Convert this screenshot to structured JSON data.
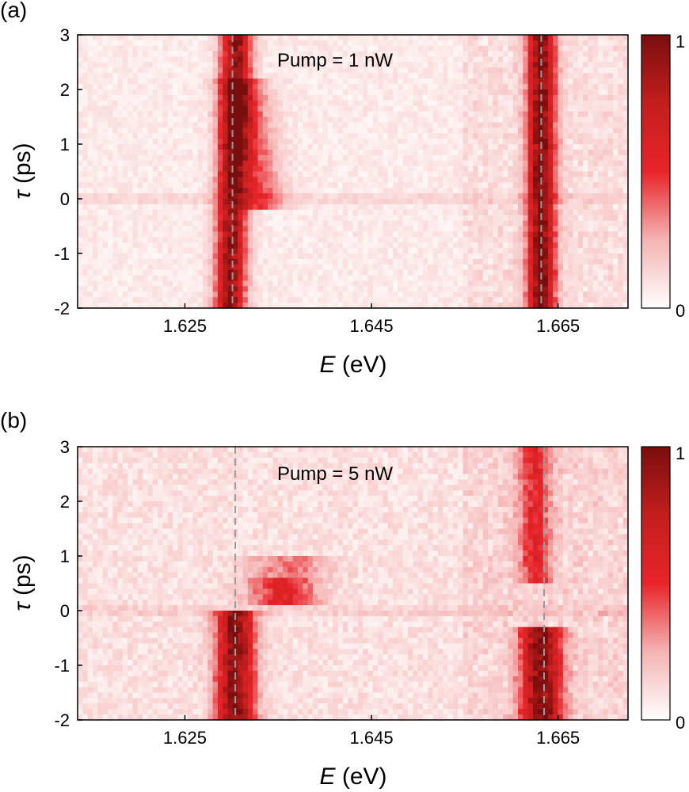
{
  "chart_data": [
    {
      "type": "heatmap",
      "panel_label": "(a)",
      "annotation": "Pump = 1 nW",
      "xlabel_italic": "E",
      "xlabel_unit": " (eV)",
      "ylabel_symbol": "τ",
      "ylabel_unit": " (ps)",
      "xlim": [
        1.6135,
        1.6725
      ],
      "ylim": [
        -2,
        3
      ],
      "xticks": [
        1.625,
        1.645,
        1.665
      ],
      "xtick_labels": [
        "1.625",
        "1.645",
        "1.665"
      ],
      "yticks": [
        -2,
        -1,
        0,
        1,
        2,
        3
      ],
      "ytick_labels": [
        "-2",
        "-1",
        "0",
        "1",
        "2",
        "3"
      ],
      "colorbar": {
        "min": 0,
        "max": 1,
        "min_label": "0",
        "max_label": "1",
        "colormap": [
          "#ffffff",
          "#f5b3b3",
          "#e8242a",
          "#c41e1e",
          "#7a0e0e"
        ]
      },
      "dashed_lines_x": [
        1.6301,
        1.6632
      ],
      "features": [
        {
          "center_e": 1.6301,
          "width_e": 0.0011,
          "amplitude": 0.85,
          "tau_from": -2,
          "tau_to": 3,
          "drift_e_per_ps": 0.00015
        },
        {
          "center_e": 1.6632,
          "width_e": 0.001,
          "amplitude": 0.9,
          "tau_from": -2,
          "tau_to": 3,
          "drift_e_per_ps": 0.0
        },
        {
          "center_e": 1.633,
          "width_e": 0.0018,
          "amplitude": 0.35,
          "tau_from": -0.2,
          "tau_to": 2.2,
          "drift_e_per_ps": -0.0008
        }
      ],
      "background_level": 0.07,
      "horizontal_band_tau": 0.0,
      "grid": false
    },
    {
      "type": "heatmap",
      "panel_label": "(b)",
      "annotation": "Pump = 5 nW",
      "xlabel_italic": "E",
      "xlabel_unit": " (eV)",
      "ylabel_symbol": "τ",
      "ylabel_unit": " (ps)",
      "xlim": [
        1.6135,
        1.6725
      ],
      "ylim": [
        -2,
        3
      ],
      "xticks": [
        1.625,
        1.645,
        1.665
      ],
      "xtick_labels": [
        "1.625",
        "1.645",
        "1.665"
      ],
      "yticks": [
        -2,
        -1,
        0,
        1,
        2,
        3
      ],
      "ytick_labels": [
        "-2",
        "-1",
        "0",
        "1",
        "2",
        "3"
      ],
      "colorbar": {
        "min": 0,
        "max": 1,
        "min_label": "0",
        "max_label": "1",
        "colormap": [
          "#ffffff",
          "#f5b3b3",
          "#e8242a",
          "#c41e1e",
          "#7a0e0e"
        ]
      },
      "dashed_lines_x": [
        1.6304,
        1.6635
      ],
      "features": [
        {
          "center_e": 1.6304,
          "width_e": 0.0014,
          "amplitude": 0.85,
          "tau_from": -2,
          "tau_to": 0.0,
          "drift_e_per_ps": 0.0
        },
        {
          "center_e": 1.6632,
          "width_e": 0.0015,
          "amplitude": 0.85,
          "tau_from": -2,
          "tau_to": -0.3,
          "drift_e_per_ps": 0.0
        },
        {
          "center_e": 1.6625,
          "width_e": 0.0012,
          "amplitude": 0.4,
          "tau_from": 0.5,
          "tau_to": 3,
          "drift_e_per_ps": 0.0
        },
        {
          "center_e": 1.6355,
          "width_e": 0.0025,
          "amplitude": 0.45,
          "tau_from": 0.1,
          "tau_to": 0.6,
          "drift_e_per_ps": 0.0
        },
        {
          "center_e": 1.636,
          "width_e": 0.003,
          "amplitude": 0.25,
          "tau_from": 0.6,
          "tau_to": 1.0,
          "drift_e_per_ps": 0.0
        }
      ],
      "background_level": 0.1,
      "horizontal_band_tau": 0.0,
      "grid": false
    }
  ]
}
